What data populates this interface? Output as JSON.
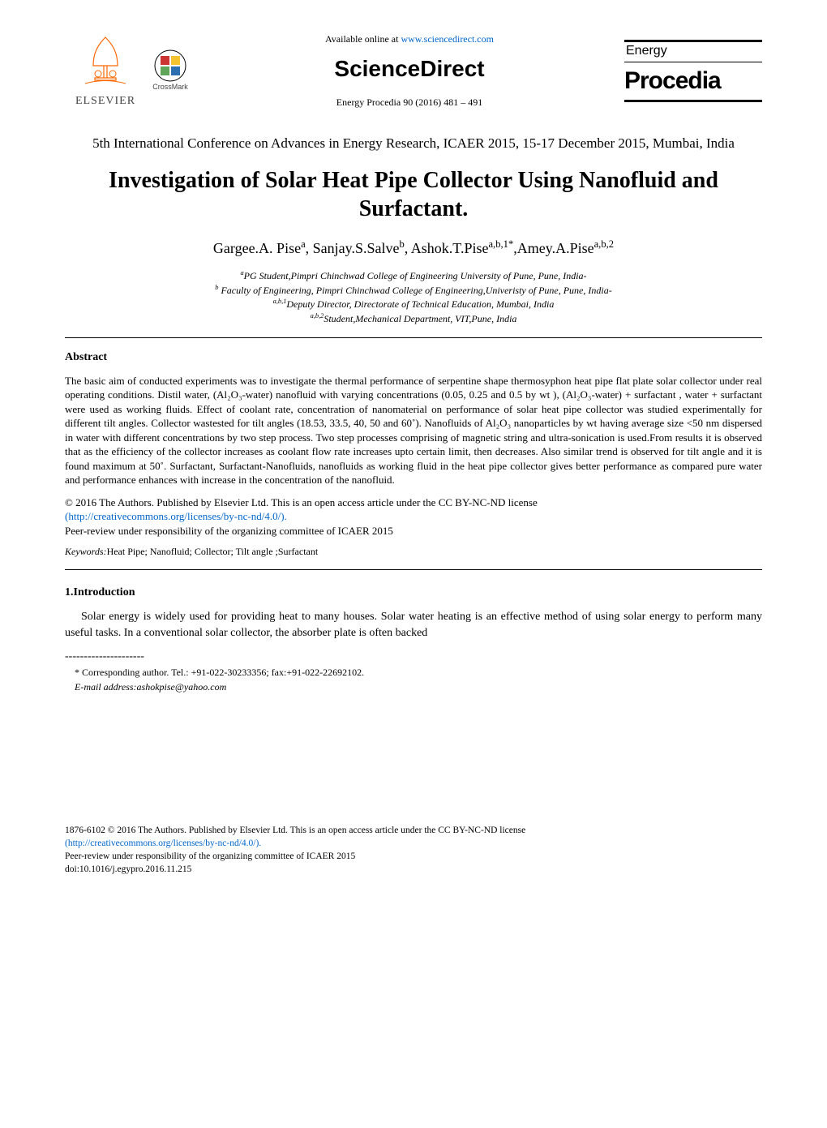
{
  "header": {
    "available_prefix": "Available online at ",
    "available_link": "www.sciencedirect.com",
    "sciencedirect": "ScienceDirect",
    "citation": "Energy Procedia 90 (2016) 481 – 491",
    "elsevier": "ELSEVIER",
    "crossmark": "CrossMark",
    "journal_energy": "Energy",
    "journal_procedia": "Procedia"
  },
  "colors": {
    "text": "#000000",
    "link": "#0066cc",
    "elsevier_orange": "#ff6600",
    "crossmark_red": "#cc3333",
    "crossmark_yellow": "#f4c430",
    "crossmark_blue": "#2b6fb0",
    "crossmark_green": "#5fa65a"
  },
  "conference": "5th International Conference on Advances in Energy Research, ICAER 2015, 15-17 December 2015, Mumbai, India",
  "title": "Investigation of Solar Heat Pipe Collector Using Nanofluid and Surfactant.",
  "authors_html": "Gargee.A. Pise<sup>a</sup>, Sanjay.S.Salve<sup>b</sup>, Ashok.T.Pise<sup>a,b,1*</sup>,Amey.A.Pise<sup>a,b,2</sup>",
  "affiliations": [
    "<sup>a</sup>PG Student,Pimpri Chinchwad College of Engineering University of Pune, Pune, India-",
    "<sup>b</sup> Faculty of Engineering, Pimpri Chinchwad College of Engineering,Univeristy of Pune, Pune, India-",
    "<sup>a,b,1</sup>Deputy Director, Directorate of Technical Education, Mumbai, India",
    "<sup>a,b,2</sup>Student,Mechanical Department, VIT,Pune, India"
  ],
  "abstract_heading": "Abstract",
  "abstract_body": "The basic aim of conducted experiments was to investigate the thermal performance of serpentine shape thermosyphon heat pipe flat plate solar collector under real operating conditions. Distil water, (Al₂O₃-water) nanofluid with varying concentrations (0.05, 0.25 and 0.5 by wt ), (Al₂O₃-water) + surfactant , water + surfactant  were used as working fluids. Effect of coolant rate, concentration of nanomaterial on performance of solar heat pipe collector was studied experimentally for different tilt angles. Collector wastested for tilt angles (18.53, 33.5, 40, 50 and 60˚). Nanofluids of  Al₂O₃ nanoparticles by wt having average size <50 nm dispersed in water with different concentrations by two step process. Two step processes comprising of magnetic string and ultra-sonication is used.From results it is observed that as the efficiency of the collector increases as coolant flow rate increases upto certain limit, then decreases.  Also similar trend is observed for tilt angle and it is found maximum at 50˚. Surfactant, Surfactant-Nanofluids, nanofluids as working fluid in the heat pipe collector gives better performance as compared pure water and performance enhances with increase in the concentration of the nanofluid.",
  "copyright": {
    "line1": "© 2016 The Authors. Published by Elsevier Ltd. This is an open access article under the CC BY-NC-ND license",
    "license_link": "(http://creativecommons.org/licenses/by-nc-nd/4.0/).",
    "peer": "Peer-review under responsibility of the organizing committee of ICAER 2015"
  },
  "keywords_label": "Keywords:",
  "keywords_value": "Heat Pipe; Nanofluid; Collector; Tilt angle ;Surfactant",
  "intro_heading": "1.Introduction",
  "intro_body": "Solar energy is widely used for providing heat to many houses. Solar water heating is an effective method of using solar energy to perform many useful tasks. In a conventional solar collector, the absorber plate is often backed",
  "footnote_dashes": "---------------------",
  "footnote": {
    "corr": "* Corresponding author. Tel.: +91-022-30233356; fax:+91-022-22692102.",
    "email_label": "E-mail address:",
    "email": "ashokpise@yahoo.com"
  },
  "footer": {
    "line1": "1876-6102 © 2016 The Authors. Published by Elsevier Ltd. This is an open access article under the CC BY-NC-ND license",
    "license_link": "(http://creativecommons.org/licenses/by-nc-nd/4.0/).",
    "peer": "Peer-review under responsibility of the organizing committee of ICAER 2015",
    "doi": "doi:10.1016/j.egypro.2016.11.215"
  }
}
